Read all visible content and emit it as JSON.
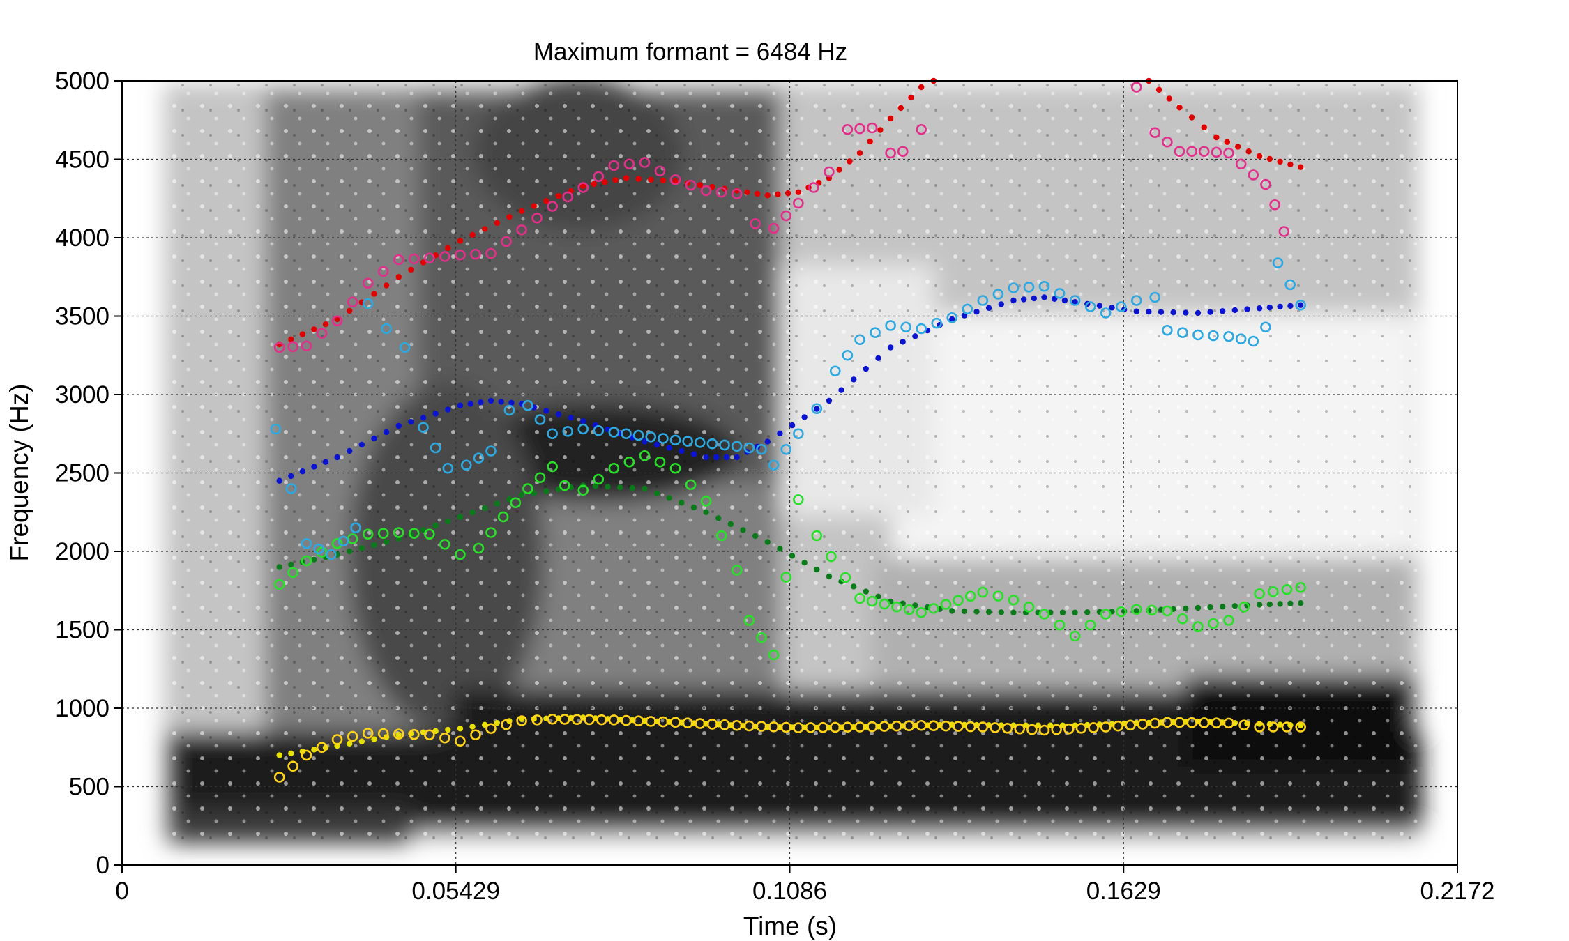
{
  "chart_data": {
    "type": "scatter",
    "title": "Maximum formant = 6484 Hz",
    "xlabel": "Time (s)",
    "ylabel": "Frequency (Hz)",
    "xlim": [
      0,
      0.2172
    ],
    "ylim": [
      0,
      5000
    ],
    "x_ticks": [
      0,
      0.05429,
      0.1086,
      0.1629,
      0.2172
    ],
    "x_tick_labels": [
      "0",
      "0.05429",
      "0.1086",
      "0.1629",
      "0.2172"
    ],
    "y_ticks": [
      0,
      500,
      1000,
      1500,
      2000,
      2500,
      3000,
      3500,
      4000,
      4500,
      5000
    ],
    "y_tick_labels": [
      "0",
      "500",
      "1000",
      "1500",
      "2000",
      "2500",
      "3000",
      "3500",
      "4000",
      "4500",
      "5000"
    ],
    "grid": true,
    "background": "grayscale spectrogram",
    "smooth_tracks": {
      "marker": "filled-dot",
      "series": [
        {
          "color": "#e8e000",
          "points": [
            [
              0.0256,
              700
            ],
            [
              0.035,
              760
            ],
            [
              0.045,
              830
            ],
            [
              0.055,
              870
            ],
            [
              0.065,
              930
            ],
            [
              0.075,
              940
            ],
            [
              0.085,
              920
            ],
            [
              0.095,
              900
            ],
            [
              0.105,
              880
            ],
            [
              0.115,
              875
            ],
            [
              0.125,
              885
            ],
            [
              0.135,
              895
            ],
            [
              0.145,
              890
            ],
            [
              0.155,
              890
            ],
            [
              0.165,
              905
            ],
            [
              0.175,
              915
            ],
            [
              0.185,
              900
            ],
            [
              0.1917,
              890
            ]
          ]
        },
        {
          "color": "#0a7a1a",
          "points": [
            [
              0.0256,
              1900
            ],
            [
              0.035,
              1980
            ],
            [
              0.045,
              2080
            ],
            [
              0.055,
              2220
            ],
            [
              0.065,
              2360
            ],
            [
              0.075,
              2420
            ],
            [
              0.085,
              2400
            ],
            [
              0.095,
              2250
            ],
            [
              0.105,
              2060
            ],
            [
              0.115,
              1840
            ],
            [
              0.125,
              1680
            ],
            [
              0.135,
              1620
            ],
            [
              0.145,
              1610
            ],
            [
              0.155,
              1610
            ],
            [
              0.165,
              1620
            ],
            [
              0.175,
              1640
            ],
            [
              0.185,
              1660
            ],
            [
              0.1917,
              1670
            ]
          ]
        },
        {
          "color": "#0a14d0",
          "points": [
            [
              0.0256,
              2450
            ],
            [
              0.035,
              2600
            ],
            [
              0.045,
              2800
            ],
            [
              0.055,
              2930
            ],
            [
              0.06,
              2960
            ],
            [
              0.065,
              2940
            ],
            [
              0.075,
              2830
            ],
            [
              0.085,
              2700
            ],
            [
              0.095,
              2600
            ],
            [
              0.1,
              2600
            ],
            [
              0.105,
              2700
            ],
            [
              0.115,
              2960
            ],
            [
              0.125,
              3300
            ],
            [
              0.135,
              3480
            ],
            [
              0.145,
              3600
            ],
            [
              0.15,
              3620
            ],
            [
              0.155,
              3590
            ],
            [
              0.165,
              3530
            ],
            [
              0.175,
              3520
            ],
            [
              0.185,
              3550
            ],
            [
              0.1917,
              3570
            ]
          ]
        },
        {
          "color": "#e00000",
          "points": [
            [
              0.0256,
              3320
            ],
            [
              0.035,
              3480
            ],
            [
              0.045,
              3750
            ],
            [
              0.055,
              3980
            ],
            [
              0.065,
              4170
            ],
            [
              0.075,
              4330
            ],
            [
              0.082,
              4380
            ],
            [
              0.09,
              4360
            ],
            [
              0.1,
              4300
            ],
            [
              0.105,
              4270
            ],
            [
              0.11,
              4290
            ],
            [
              0.115,
              4380
            ],
            [
              0.12,
              4540
            ],
            [
              0.125,
              4760
            ],
            [
              0.13,
              4960
            ],
            [
              0.134,
              5040
            ],
            [
              0.167,
              5000
            ],
            [
              0.172,
              4830
            ],
            [
              0.178,
              4640
            ],
            [
              0.185,
              4520
            ],
            [
              0.1917,
              4450
            ]
          ]
        }
      ]
    },
    "raw_tracks": {
      "marker": "open-circle",
      "series": [
        {
          "color": "#ffd21a",
          "points": [
            [
              0.0256,
              560
            ],
            [
              0.03,
              700
            ],
            [
              0.035,
              800
            ],
            [
              0.04,
              840
            ],
            [
              0.045,
              835
            ],
            [
              0.05,
              830
            ],
            [
              0.055,
              790
            ],
            [
              0.06,
              870
            ],
            [
              0.065,
              920
            ],
            [
              0.07,
              930
            ],
            [
              0.08,
              925
            ],
            [
              0.09,
              910
            ],
            [
              0.1,
              890
            ],
            [
              0.11,
              875
            ],
            [
              0.12,
              880
            ],
            [
              0.13,
              890
            ],
            [
              0.14,
              880
            ],
            [
              0.15,
              860
            ],
            [
              0.16,
              880
            ],
            [
              0.17,
              910
            ],
            [
              0.18,
              905
            ],
            [
              0.185,
              880
            ],
            [
              0.1917,
              880
            ]
          ]
        },
        {
          "color": "#2adf2a",
          "points": [
            [
              0.0256,
              1790
            ],
            [
              0.03,
              1940
            ],
            [
              0.035,
              2050
            ],
            [
              0.04,
              2110
            ],
            [
              0.045,
              2120
            ],
            [
              0.05,
              2110
            ],
            [
              0.055,
              1980
            ],
            [
              0.058,
              2020
            ],
            [
              0.062,
              2220
            ],
            [
              0.066,
              2400
            ],
            [
              0.07,
              2540
            ],
            [
              0.072,
              2420
            ],
            [
              0.075,
              2390
            ],
            [
              0.08,
              2530
            ],
            [
              0.085,
              2610
            ],
            [
              0.09,
              2530
            ],
            [
              0.095,
              2320
            ],
            [
              0.1,
              1880
            ],
            [
              0.102,
              1560
            ],
            [
              0.106,
              1340
            ],
            [
              0.11,
              2330
            ],
            [
              0.113,
              2100
            ],
            [
              0.12,
              1700
            ],
            [
              0.13,
              1610
            ],
            [
              0.14,
              1740
            ],
            [
              0.145,
              1690
            ],
            [
              0.15,
              1600
            ],
            [
              0.155,
              1460
            ],
            [
              0.16,
              1600
            ],
            [
              0.165,
              1630
            ],
            [
              0.17,
              1620
            ],
            [
              0.175,
              1520
            ],
            [
              0.18,
              1560
            ],
            [
              0.185,
              1730
            ],
            [
              0.1917,
              1770
            ]
          ]
        },
        {
          "color": "#2ea8e0",
          "points": [
            [
              0.025,
              2780
            ],
            [
              0.0275,
              2400
            ],
            [
              0.03,
              2050
            ],
            [
              0.034,
              1980
            ],
            [
              0.038,
              2150
            ],
            [
              0.04,
              3580
            ],
            [
              0.043,
              3420
            ],
            [
              0.046,
              3300
            ],
            [
              0.049,
              2790
            ],
            [
              0.053,
              2530
            ],
            [
              0.056,
              2550
            ],
            [
              0.06,
              2640
            ],
            [
              0.063,
              2900
            ],
            [
              0.066,
              2930
            ],
            [
              0.07,
              2750
            ],
            [
              0.075,
              2780
            ],
            [
              0.08,
              2760
            ],
            [
              0.09,
              2710
            ],
            [
              0.1,
              2670
            ],
            [
              0.104,
              2650
            ],
            [
              0.106,
              2550
            ],
            [
              0.11,
              2750
            ],
            [
              0.113,
              2910
            ],
            [
              0.116,
              3150
            ],
            [
              0.12,
              3350
            ],
            [
              0.125,
              3440
            ],
            [
              0.13,
              3420
            ],
            [
              0.135,
              3490
            ],
            [
              0.14,
              3600
            ],
            [
              0.145,
              3680
            ],
            [
              0.15,
              3690
            ],
            [
              0.155,
              3600
            ],
            [
              0.16,
              3520
            ],
            [
              0.165,
              3600
            ],
            [
              0.168,
              3620
            ],
            [
              0.17,
              3410
            ],
            [
              0.175,
              3380
            ],
            [
              0.18,
              3370
            ],
            [
              0.184,
              3340
            ],
            [
              0.186,
              3430
            ],
            [
              0.188,
              3840
            ],
            [
              0.19,
              3700
            ],
            [
              0.1917,
              3570
            ]
          ]
        },
        {
          "color": "#e0308a",
          "points": [
            [
              0.0256,
              3300
            ],
            [
              0.03,
              3310
            ],
            [
              0.035,
              3470
            ],
            [
              0.04,
              3710
            ],
            [
              0.045,
              3860
            ],
            [
              0.05,
              3870
            ],
            [
              0.055,
              3890
            ],
            [
              0.06,
              3900
            ],
            [
              0.065,
              4050
            ],
            [
              0.07,
              4200
            ],
            [
              0.075,
              4320
            ],
            [
              0.08,
              4460
            ],
            [
              0.085,
              4480
            ],
            [
              0.09,
              4370
            ],
            [
              0.095,
              4300
            ],
            [
              0.1,
              4280
            ],
            [
              0.103,
              4090
            ],
            [
              0.106,
              4060
            ],
            [
              0.11,
              4220
            ],
            [
              0.115,
              4420
            ],
            [
              0.118,
              4690
            ],
            [
              0.122,
              4700
            ],
            [
              0.125,
              4540
            ],
            [
              0.127,
              4550
            ],
            [
              0.13,
              4690
            ],
            [
              0.165,
              4960
            ],
            [
              0.168,
              4670
            ],
            [
              0.172,
              4550
            ],
            [
              0.176,
              4550
            ],
            [
              0.18,
              4540
            ],
            [
              0.184,
              4400
            ],
            [
              0.186,
              4340
            ],
            [
              0.1875,
              4210
            ],
            [
              0.189,
              4040
            ]
          ]
        }
      ]
    }
  }
}
